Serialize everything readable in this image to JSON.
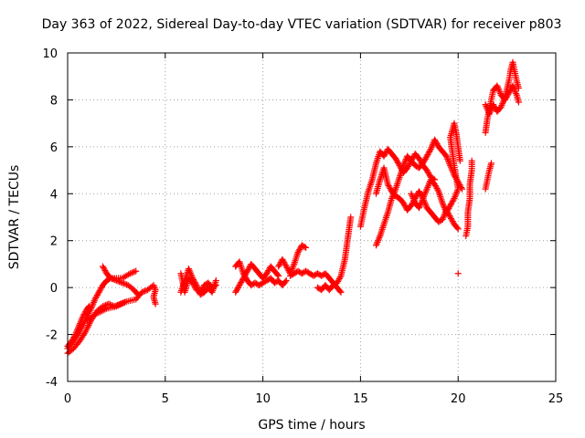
{
  "chart_data": {
    "type": "scatter",
    "title": "Day 363 of 2022, Sidereal Day-to-day VTEC variation (SDTVAR) for receiver p803",
    "xlabel": "GPS time / hours",
    "ylabel": "SDTVAR / TECUs",
    "xlim": [
      0,
      25
    ],
    "ylim": [
      -4,
      10
    ],
    "xticks": [
      0,
      5,
      10,
      15,
      20,
      25
    ],
    "yticks": [
      -4,
      -2,
      0,
      2,
      4,
      6,
      8,
      10
    ],
    "xtick_labels": [
      "0",
      "5",
      "10",
      "15",
      "20",
      "25"
    ],
    "ytick_labels": [
      "-4",
      "-2",
      "0",
      "2",
      "4",
      "6",
      "8",
      "10"
    ],
    "grid": true,
    "marker": "+",
    "color": "#ff0000",
    "series": [
      {
        "name": "SDTVAR",
        "tracks": [
          [
            [
              0.0,
              -2.5
            ],
            [
              0.2,
              -2.3
            ],
            [
              0.4,
              -2.0
            ],
            [
              0.6,
              -1.6
            ],
            [
              0.8,
              -1.2
            ],
            [
              1.0,
              -0.9
            ],
            [
              1.1,
              -0.8
            ]
          ],
          [
            [
              0.0,
              -2.8
            ],
            [
              0.3,
              -2.6
            ],
            [
              0.6,
              -2.3
            ],
            [
              0.9,
              -1.9
            ],
            [
              1.2,
              -1.4
            ],
            [
              1.5,
              -1.0
            ],
            [
              1.8,
              -0.8
            ],
            [
              2.1,
              -0.7
            ],
            [
              2.4,
              -0.8
            ],
            [
              2.7,
              -0.7
            ],
            [
              3.0,
              -0.6
            ]
          ],
          [
            [
              0.0,
              -2.6
            ],
            [
              0.3,
              -2.3
            ],
            [
              0.6,
              -1.9
            ],
            [
              0.9,
              -1.4
            ],
            [
              1.2,
              -0.9
            ],
            [
              1.4,
              -0.5
            ],
            [
              1.6,
              -0.2
            ],
            [
              1.8,
              0.1
            ],
            [
              2.0,
              0.3
            ],
            [
              2.2,
              0.4
            ],
            [
              2.5,
              0.3
            ],
            [
              2.8,
              0.2
            ],
            [
              3.1,
              0.1
            ],
            [
              3.4,
              -0.1
            ],
            [
              3.6,
              -0.3
            ]
          ],
          [
            [
              1.8,
              0.9
            ],
            [
              2.0,
              0.6
            ],
            [
              2.2,
              0.4
            ],
            [
              2.5,
              0.4
            ],
            [
              2.8,
              0.4
            ],
            [
              3.2,
              0.6
            ],
            [
              3.5,
              0.7
            ]
          ],
          [
            [
              1.0,
              -1.4
            ],
            [
              1.5,
              -1.1
            ],
            [
              2.0,
              -0.9
            ],
            [
              2.5,
              -0.8
            ],
            [
              3.0,
              -0.6
            ],
            [
              3.5,
              -0.5
            ],
            [
              3.8,
              -0.2
            ],
            [
              4.1,
              -0.1
            ],
            [
              4.4,
              0.1
            ],
            [
              4.5,
              -0.1
            ],
            [
              4.4,
              -0.4
            ],
            [
              4.5,
              -0.7
            ]
          ],
          [
            [
              5.8,
              0.6
            ],
            [
              5.9,
              0.2
            ],
            [
              6.0,
              -0.2
            ],
            [
              6.1,
              0.1
            ],
            [
              6.2,
              0.4
            ],
            [
              6.4,
              0.2
            ],
            [
              6.6,
              -0.1
            ],
            [
              6.8,
              -0.2
            ],
            [
              7.0,
              0.1
            ],
            [
              7.2,
              0.2
            ],
            [
              7.4,
              0.0
            ],
            [
              7.6,
              0.1
            ]
          ],
          [
            [
              5.8,
              -0.2
            ],
            [
              6.0,
              0.3
            ],
            [
              6.2,
              0.8
            ],
            [
              6.4,
              0.4
            ],
            [
              6.6,
              0.1
            ],
            [
              6.8,
              -0.3
            ],
            [
              7.0,
              -0.2
            ],
            [
              7.2,
              0.0
            ],
            [
              7.4,
              -0.2
            ],
            [
              7.6,
              0.3
            ]
          ],
          [
            [
              8.6,
              -0.2
            ],
            [
              8.8,
              0.1
            ],
            [
              9.0,
              0.4
            ],
            [
              9.2,
              0.7
            ],
            [
              9.4,
              1.0
            ],
            [
              9.6,
              0.8
            ],
            [
              9.8,
              0.6
            ],
            [
              10.0,
              0.4
            ],
            [
              10.2,
              0.6
            ],
            [
              10.4,
              0.9
            ],
            [
              10.6,
              0.7
            ],
            [
              10.8,
              0.5
            ]
          ],
          [
            [
              8.6,
              0.9
            ],
            [
              8.8,
              1.1
            ],
            [
              9.0,
              0.6
            ],
            [
              9.2,
              0.3
            ],
            [
              9.4,
              0.1
            ],
            [
              9.6,
              0.2
            ],
            [
              9.8,
              0.1
            ],
            [
              10.0,
              0.2
            ],
            [
              10.2,
              0.3
            ],
            [
              10.4,
              0.4
            ],
            [
              10.6,
              0.2
            ],
            [
              10.8,
              0.3
            ],
            [
              11.0,
              0.1
            ],
            [
              11.2,
              0.3
            ]
          ],
          [
            [
              10.8,
              0.9
            ],
            [
              11.0,
              1.2
            ],
            [
              11.2,
              0.9
            ],
            [
              11.4,
              0.6
            ],
            [
              11.6,
              1.0
            ],
            [
              11.8,
              1.5
            ],
            [
              12.0,
              1.8
            ],
            [
              12.2,
              1.7
            ]
          ],
          [
            [
              11.4,
              0.5
            ],
            [
              11.6,
              0.6
            ],
            [
              11.8,
              0.7
            ],
            [
              12.0,
              0.6
            ],
            [
              12.2,
              0.7
            ],
            [
              12.4,
              0.6
            ],
            [
              12.6,
              0.5
            ],
            [
              12.8,
              0.6
            ],
            [
              13.0,
              0.5
            ],
            [
              13.2,
              0.6
            ],
            [
              13.4,
              0.4
            ],
            [
              13.6,
              0.2
            ],
            [
              13.8,
              0.0
            ],
            [
              14.0,
              -0.2
            ]
          ],
          [
            [
              12.8,
              0.0
            ],
            [
              13.0,
              -0.1
            ],
            [
              13.2,
              0.1
            ],
            [
              13.4,
              -0.1
            ],
            [
              13.6,
              0.1
            ],
            [
              13.8,
              0.2
            ],
            [
              14.0,
              0.5
            ],
            [
              14.2,
              1.2
            ],
            [
              14.3,
              1.8
            ],
            [
              14.4,
              2.4
            ],
            [
              14.5,
              3.0
            ]
          ],
          [
            [
              15.0,
              2.6
            ],
            [
              15.2,
              3.4
            ],
            [
              15.4,
              4.1
            ],
            [
              15.6,
              4.6
            ],
            [
              15.8,
              5.3
            ],
            [
              16.0,
              5.8
            ],
            [
              16.2,
              5.6
            ],
            [
              16.4,
              5.9
            ],
            [
              16.6,
              5.7
            ],
            [
              16.8,
              5.5
            ],
            [
              17.0,
              5.2
            ],
            [
              17.2,
              4.9
            ],
            [
              17.4,
              5.1
            ],
            [
              17.6,
              5.4
            ],
            [
              17.8,
              5.7
            ],
            [
              18.0,
              5.5
            ],
            [
              18.2,
              5.2
            ],
            [
              18.4,
              5.0
            ],
            [
              18.6,
              4.7
            ],
            [
              18.8,
              4.6
            ]
          ],
          [
            [
              15.8,
              4.0
            ],
            [
              16.0,
              4.6
            ],
            [
              16.2,
              5.1
            ],
            [
              16.4,
              4.4
            ],
            [
              16.6,
              4.1
            ],
            [
              16.8,
              3.9
            ],
            [
              17.0,
              3.8
            ],
            [
              17.2,
              3.6
            ],
            [
              17.4,
              3.3
            ],
            [
              17.6,
              3.5
            ],
            [
              17.8,
              3.8
            ],
            [
              18.0,
              4.1
            ],
            [
              18.2,
              3.8
            ],
            [
              18.4,
              3.4
            ],
            [
              18.6,
              3.2
            ],
            [
              18.8,
              3.0
            ],
            [
              19.0,
              2.8
            ],
            [
              19.2,
              2.9
            ],
            [
              19.4,
              3.3
            ],
            [
              19.6,
              3.0
            ],
            [
              19.8,
              2.7
            ],
            [
              20.0,
              2.5
            ]
          ],
          [
            [
              15.8,
              1.8
            ],
            [
              16.0,
              2.2
            ],
            [
              16.2,
              2.7
            ],
            [
              16.4,
              3.2
            ],
            [
              16.6,
              3.8
            ],
            [
              16.8,
              4.2
            ],
            [
              17.0,
              4.7
            ],
            [
              17.2,
              5.2
            ],
            [
              17.4,
              5.6
            ],
            [
              17.6,
              5.4
            ],
            [
              17.8,
              5.2
            ],
            [
              18.0,
              5.1
            ],
            [
              18.2,
              5.3
            ],
            [
              18.4,
              5.6
            ],
            [
              18.6,
              5.9
            ],
            [
              18.8,
              6.3
            ],
            [
              19.0,
              6.0
            ],
            [
              19.2,
              5.8
            ],
            [
              19.4,
              5.6
            ],
            [
              19.6,
              5.2
            ],
            [
              19.8,
              4.8
            ],
            [
              20.0,
              4.5
            ],
            [
              20.2,
              4.2
            ]
          ],
          [
            [
              17.6,
              4.0
            ],
            [
              17.8,
              3.6
            ],
            [
              18.0,
              3.4
            ],
            [
              18.2,
              3.8
            ],
            [
              18.4,
              4.2
            ],
            [
              18.6,
              4.6
            ],
            [
              18.8,
              4.4
            ],
            [
              19.0,
              4.1
            ],
            [
              19.2,
              3.6
            ],
            [
              19.4,
              3.2
            ],
            [
              19.6,
              3.5
            ],
            [
              19.8,
              3.8
            ],
            [
              20.0,
              4.2
            ],
            [
              19.9,
              4.7
            ],
            [
              19.8,
              5.2
            ],
            [
              19.7,
              5.8
            ],
            [
              19.6,
              6.4
            ],
            [
              19.8,
              7.0
            ],
            [
              19.9,
              6.6
            ],
            [
              20.0,
              6.0
            ],
            [
              20.1,
              5.4
            ]
          ],
          [
            [
              20.0,
              0.6
            ]
          ],
          [
            [
              20.4,
              2.2
            ],
            [
              20.5,
              2.6
            ],
            [
              20.5,
              3.2
            ],
            [
              20.6,
              3.8
            ],
            [
              20.6,
              4.4
            ],
            [
              20.7,
              5.0
            ],
            [
              20.7,
              5.4
            ]
          ],
          [
            [
              21.4,
              4.2
            ],
            [
              21.5,
              4.6
            ],
            [
              21.6,
              5.0
            ],
            [
              21.7,
              5.3
            ]
          ],
          [
            [
              21.4,
              6.6
            ],
            [
              21.5,
              7.2
            ],
            [
              21.6,
              7.6
            ],
            [
              21.7,
              8.0
            ],
            [
              21.8,
              8.4
            ],
            [
              22.0,
              8.6
            ],
            [
              22.2,
              8.2
            ],
            [
              22.4,
              8.0
            ],
            [
              22.6,
              8.3
            ],
            [
              22.8,
              8.6
            ],
            [
              23.0,
              8.2
            ],
            [
              23.1,
              7.9
            ]
          ],
          [
            [
              21.4,
              7.8
            ],
            [
              21.6,
              7.4
            ],
            [
              21.8,
              7.8
            ],
            [
              22.0,
              7.5
            ],
            [
              22.2,
              7.7
            ],
            [
              22.4,
              8.1
            ],
            [
              22.6,
              8.8
            ],
            [
              22.7,
              9.3
            ],
            [
              22.8,
              9.6
            ],
            [
              22.9,
              9.2
            ],
            [
              23.0,
              8.8
            ],
            [
              23.1,
              8.5
            ]
          ]
        ]
      }
    ]
  }
}
